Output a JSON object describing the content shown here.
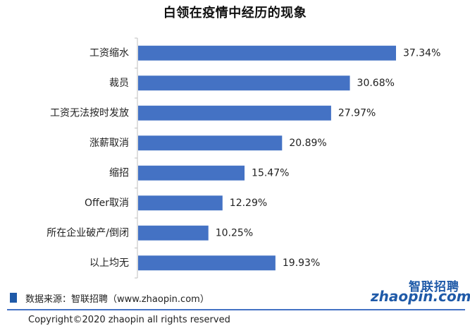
{
  "chart_data": {
    "type": "bar",
    "orientation": "horizontal",
    "title": "白领在疫情中经历的现象",
    "categories": [
      "工资缩水",
      "裁员",
      "工资无法按时发放",
      "涨薪取消",
      "缩招",
      "Offer取消",
      "所在企业破产/倒闭",
      "以上均无"
    ],
    "values": [
      37.34,
      30.68,
      27.97,
      20.89,
      15.47,
      12.29,
      10.25,
      19.93
    ],
    "value_labels": [
      "37.34%",
      "30.68%",
      "27.97%",
      "20.89%",
      "15.47%",
      "12.29%",
      "10.25%",
      "19.93%"
    ],
    "unit": "%",
    "xlim": [
      0,
      37.34
    ],
    "grid": false,
    "bar_color": "#4472c4",
    "axis_color": "#bfbfbf"
  },
  "footer": {
    "source": "数据来源：智联招聘（www.zhaopin.com）",
    "copyright": "Copyright©2020 zhaopin all rights reserved",
    "accent_color": "#1f5aa8"
  },
  "logo": {
    "text_cn": "智联招聘",
    "text_en": "zhaopin.com",
    "dot_color": "#e5322d"
  }
}
